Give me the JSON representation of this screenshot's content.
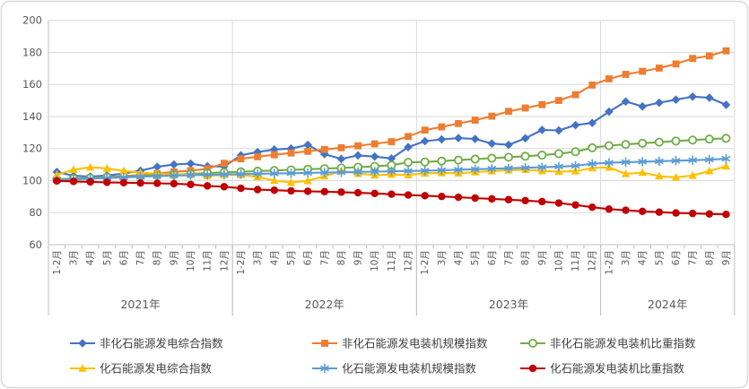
{
  "chart_data": {
    "type": "line",
    "title": "",
    "grid": true,
    "legend_position": "bottom",
    "y_axis": {
      "min": 60,
      "max": 200,
      "step": 20,
      "tick_labels": [
        "200",
        "180",
        "160",
        "140",
        "120",
        "100",
        "80",
        "60"
      ]
    },
    "x_axis": {
      "years": [
        {
          "label": "2021年",
          "months": [
            "1-2月",
            "3月",
            "4月",
            "5月",
            "6月",
            "7月",
            "8月",
            "9月",
            "10月",
            "11月",
            "12月"
          ]
        },
        {
          "label": "2022年",
          "months": [
            "1-2月",
            "3月",
            "4月",
            "5月",
            "6月",
            "7月",
            "8月",
            "9月",
            "10月",
            "11月",
            "12月"
          ]
        },
        {
          "label": "2023年",
          "months": [
            "1-2月",
            "3月",
            "4月",
            "5月",
            "6月",
            "7月",
            "8月",
            "9月",
            "10月",
            "11月",
            "12月"
          ]
        },
        {
          "label": "2024年",
          "months": [
            "1-2月",
            "3月",
            "4月",
            "5月",
            "6月",
            "7月",
            "8月",
            "9月"
          ]
        }
      ]
    },
    "series": [
      {
        "name": "非化石能源发电综合指数",
        "color": "#4472C4",
        "marker": "diamond",
        "values": [
          105.4,
          103.0,
          102.5,
          103.2,
          104.4,
          106.2,
          108.6,
          110.0,
          110.6,
          108.9,
          108.8,
          115.8,
          117.8,
          119.4,
          120.0,
          122.3,
          116.5,
          113.5,
          115.7,
          115.0,
          113.8,
          120.9,
          124.6,
          125.7,
          126.5,
          126.0,
          123.1,
          122.3,
          126.4,
          131.6,
          131.3,
          134.6,
          136.0,
          143.0,
          149.3,
          146.3,
          148.6,
          150.5,
          152.4,
          151.7,
          147.3
        ]
      },
      {
        "name": "非化石能源发电装机规模指数",
        "color": "#ED7D31",
        "marker": "square",
        "values": [
          100.6,
          101.1,
          101.6,
          102.2,
          102.8,
          103.5,
          104.3,
          105.4,
          106.2,
          107.4,
          110.8,
          113.6,
          114.9,
          116.1,
          117.2,
          118.3,
          119.4,
          120.5,
          121.7,
          122.9,
          124.3,
          127.5,
          131.5,
          133.5,
          135.6,
          137.7,
          140.2,
          143.2,
          145.3,
          147.4,
          150.0,
          153.6,
          159.6,
          163.5,
          166.3,
          168.2,
          170.2,
          172.8,
          176.2,
          177.8,
          181.0
        ]
      },
      {
        "name": "非化石能源发电装机比重指数",
        "color": "#70AD47",
        "marker": "circle-open",
        "values": [
          100.9,
          101.3,
          101.7,
          102.1,
          102.5,
          102.9,
          103.3,
          103.7,
          104.2,
          104.7,
          105.2,
          105.5,
          105.9,
          106.3,
          106.7,
          107.1,
          107.5,
          107.9,
          108.4,
          108.9,
          109.6,
          111.4,
          111.6,
          112.2,
          112.8,
          113.4,
          114.0,
          114.6,
          115.2,
          115.9,
          116.8,
          118.0,
          120.5,
          121.8,
          122.6,
          123.3,
          124.0,
          124.7,
          125.3,
          125.9,
          126.4
        ]
      },
      {
        "name": "化石能源发电综合指数",
        "color": "#FFC000",
        "marker": "triangle",
        "values": [
          103.6,
          106.8,
          108.3,
          107.6,
          106.1,
          104.9,
          104.3,
          103.7,
          104.1,
          102.9,
          103.7,
          103.6,
          102.3,
          100.0,
          98.8,
          99.8,
          102.8,
          105.9,
          104.4,
          103.4,
          103.8,
          103.5,
          104.5,
          104.8,
          104.6,
          105.3,
          105.9,
          106.5,
          106.8,
          106.0,
          105.6,
          105.9,
          107.8,
          108.3,
          104.2,
          105.0,
          102.8,
          102.0,
          103.2,
          106.0,
          109.0
        ]
      },
      {
        "name": "化石能源发电装机规模指数",
        "color": "#5B9BD5",
        "marker": "asterisk",
        "values": [
          100.4,
          100.8,
          101.2,
          101.6,
          102.0,
          102.4,
          102.8,
          103.1,
          103.4,
          103.6,
          103.8,
          104.0,
          104.2,
          104.4,
          104.6,
          104.8,
          105.0,
          105.2,
          105.4,
          105.6,
          105.8,
          106.0,
          106.2,
          106.5,
          106.8,
          107.1,
          107.4,
          107.7,
          108.0,
          108.3,
          108.7,
          109.2,
          110.5,
          111.1,
          111.5,
          111.8,
          112.1,
          112.4,
          112.7,
          113.1,
          113.6
        ]
      },
      {
        "name": "化石能源发电装机比重指数",
        "color": "#C00000",
        "marker": "circle",
        "values": [
          99.8,
          99.5,
          99.2,
          98.9,
          98.7,
          98.5,
          98.3,
          98.1,
          97.6,
          96.7,
          96.2,
          95.2,
          94.4,
          94.0,
          93.6,
          93.3,
          93.1,
          92.8,
          92.4,
          92.0,
          91.5,
          91.0,
          90.6,
          90.1,
          89.6,
          89.1,
          88.6,
          88.1,
          87.5,
          86.9,
          86.0,
          84.8,
          83.4,
          82.2,
          81.5,
          80.8,
          80.3,
          79.8,
          79.5,
          79.2,
          78.9
        ]
      }
    ],
    "legend_rows": [
      [
        0,
        1,
        2
      ],
      [
        3,
        4,
        5
      ]
    ]
  },
  "colors": {
    "background": "#FFFFFF",
    "frame_border": "#D9D9D9",
    "gridline": "#D9D9D9",
    "axis_line": "#BFBFBF",
    "tick_text": "#595959",
    "legend_text": "#404040"
  }
}
